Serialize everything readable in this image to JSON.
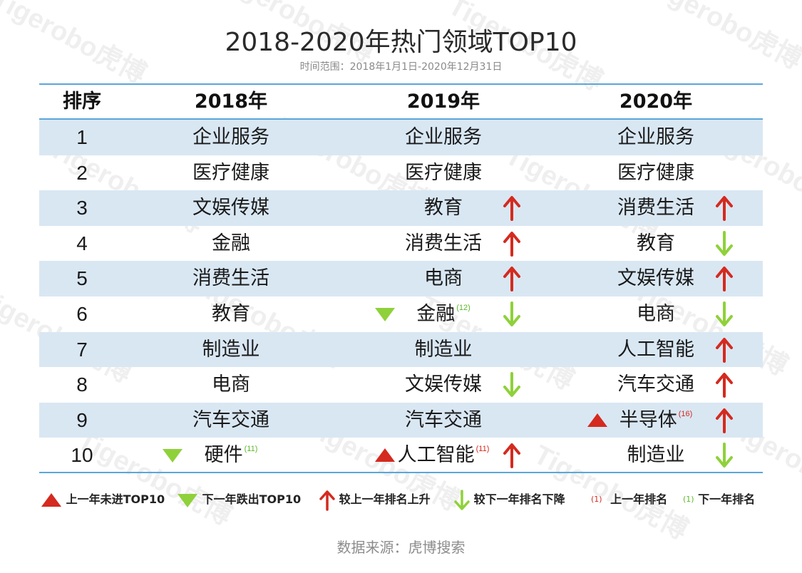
{
  "title": "2018-2020年热门领域TOP10",
  "subtitle": "时间范围：2018年1月1日-2020年12月31日",
  "watermark": "Tigerobo虎博",
  "colors": {
    "up": "#d42a1f",
    "down": "#8fd13a",
    "header_line": "#5aa7d9",
    "shade": "#d9e7f3"
  },
  "chart_data": {
    "type": "table",
    "columns": [
      "排序",
      "2018年",
      "2019年",
      "2020年"
    ],
    "rows": [
      {
        "rank": "1",
        "y2018": {
          "name": "企业服务",
          "mark": "",
          "prev": ""
        },
        "y2019": {
          "name": "企业服务",
          "mark": "",
          "prev": "",
          "arrow": ""
        },
        "y2020": {
          "name": "企业服务",
          "mark": "",
          "prev": "",
          "arrow": ""
        }
      },
      {
        "rank": "2",
        "y2018": {
          "name": "医疗健康",
          "mark": "",
          "prev": ""
        },
        "y2019": {
          "name": "医疗健康",
          "mark": "",
          "prev": "",
          "arrow": ""
        },
        "y2020": {
          "name": "医疗健康",
          "mark": "",
          "prev": "",
          "arrow": ""
        }
      },
      {
        "rank": "3",
        "y2018": {
          "name": "文娱传媒",
          "mark": "",
          "prev": ""
        },
        "y2019": {
          "name": "教育",
          "mark": "",
          "prev": "",
          "arrow": "up"
        },
        "y2020": {
          "name": "消费生活",
          "mark": "",
          "prev": "",
          "arrow": "up"
        }
      },
      {
        "rank": "4",
        "y2018": {
          "name": "金融",
          "mark": "",
          "prev": ""
        },
        "y2019": {
          "name": "消费生活",
          "mark": "",
          "prev": "",
          "arrow": "up"
        },
        "y2020": {
          "name": "教育",
          "mark": "",
          "prev": "",
          "arrow": "down"
        }
      },
      {
        "rank": "5",
        "y2018": {
          "name": "消费生活",
          "mark": "",
          "prev": ""
        },
        "y2019": {
          "name": "电商",
          "mark": "",
          "prev": "",
          "arrow": "up"
        },
        "y2020": {
          "name": "文娱传媒",
          "mark": "",
          "prev": "",
          "arrow": "up"
        }
      },
      {
        "rank": "6",
        "y2018": {
          "name": "教育",
          "mark": "",
          "prev": ""
        },
        "y2019": {
          "name": "金融",
          "mark": "out",
          "prev": "(12)",
          "arrow": "down"
        },
        "y2020": {
          "name": "电商",
          "mark": "",
          "prev": "",
          "arrow": "down"
        }
      },
      {
        "rank": "7",
        "y2018": {
          "name": "制造业",
          "mark": "",
          "prev": ""
        },
        "y2019": {
          "name": "制造业",
          "mark": "",
          "prev": "",
          "arrow": ""
        },
        "y2020": {
          "name": "人工智能",
          "mark": "",
          "prev": "",
          "arrow": "up"
        }
      },
      {
        "rank": "8",
        "y2018": {
          "name": "电商",
          "mark": "",
          "prev": ""
        },
        "y2019": {
          "name": "文娱传媒",
          "mark": "",
          "prev": "",
          "arrow": "down"
        },
        "y2020": {
          "name": "汽车交通",
          "mark": "",
          "prev": "",
          "arrow": "up"
        }
      },
      {
        "rank": "9",
        "y2018": {
          "name": "汽车交通",
          "mark": "",
          "prev": ""
        },
        "y2019": {
          "name": "汽车交通",
          "mark": "",
          "prev": "",
          "arrow": ""
        },
        "y2020": {
          "name": "半导体",
          "mark": "new",
          "prev": "(16)",
          "arrow": "up"
        }
      },
      {
        "rank": "10",
        "y2018": {
          "name": "硬件",
          "mark": "out",
          "prev": "(11)"
        },
        "y2019": {
          "name": "人工智能",
          "mark": "new",
          "prev": "(11)",
          "arrow": "up"
        },
        "y2020": {
          "name": "制造业",
          "mark": "",
          "prev": "",
          "arrow": "down"
        }
      }
    ]
  },
  "legend": {
    "new_label": "上一年未进TOP10",
    "out_label": "下一年跌出TOP10",
    "up_label": "较上一年排名上升",
    "down_label": "较下一年排名下降",
    "prev_red_sample": "(1)",
    "prev_red_label": "上一年排名",
    "prev_green_sample": "(1)",
    "prev_green_label": "下一年排名"
  },
  "source": "数据来源：虎博搜索"
}
